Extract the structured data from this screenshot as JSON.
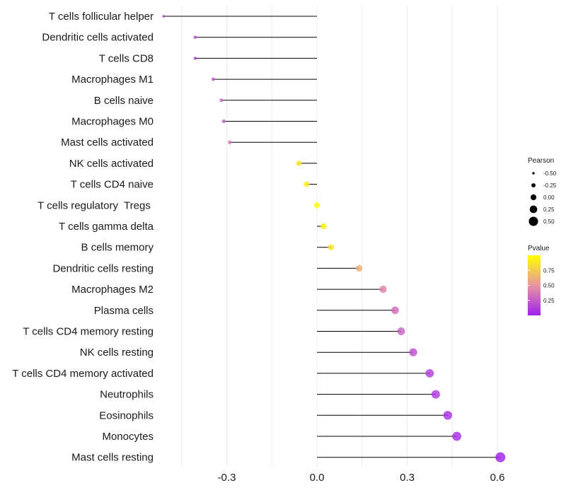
{
  "chart_data": {
    "type": "lollipop",
    "orientation": "horizontal",
    "baseline": 0,
    "xlim": [
      -0.52,
      0.64
    ],
    "xticks": [
      -0.3,
      0.0,
      0.3,
      0.6
    ],
    "xtick_labels": [
      "-0.3",
      "0.0",
      "0.3",
      "0.6"
    ],
    "xlabel": "",
    "ylabel": "",
    "grid": "vertical",
    "points": [
      {
        "label": "T cells follicular helper",
        "value": -0.51,
        "pvalue": 0.03
      },
      {
        "label": "Dendritic cells activated",
        "value": -0.405,
        "pvalue": 0.16
      },
      {
        "label": "T cells CD8",
        "value": -0.405,
        "pvalue": 0.1
      },
      {
        "label": "Macrophages M1",
        "value": -0.345,
        "pvalue": 0.25
      },
      {
        "label": "B cells naive",
        "value": -0.318,
        "pvalue": 0.3
      },
      {
        "label": "Macrophages M0",
        "value": -0.31,
        "pvalue": 0.28
      },
      {
        "label": "Mast cells activated",
        "value": -0.29,
        "pvalue": 0.37
      },
      {
        "label": "NK cells activated",
        "value": -0.06,
        "pvalue": 0.88
      },
      {
        "label": "T cells CD4 naive",
        "value": -0.035,
        "pvalue": 0.93
      },
      {
        "label": "T cells regulatory  Tregs ",
        "value": 0.0,
        "pvalue": 0.99
      },
      {
        "label": "T cells gamma delta",
        "value": 0.022,
        "pvalue": 0.94
      },
      {
        "label": "B cells memory",
        "value": 0.047,
        "pvalue": 0.88
      },
      {
        "label": "Dendritic cells resting",
        "value": 0.14,
        "pvalue": 0.62
      },
      {
        "label": "Macrophages M2",
        "value": 0.22,
        "pvalue": 0.42
      },
      {
        "label": "Plasma cells",
        "value": 0.26,
        "pvalue": 0.33
      },
      {
        "label": "T cells CD4 memory resting",
        "value": 0.28,
        "pvalue": 0.28
      },
      {
        "label": "NK cells resting",
        "value": 0.32,
        "pvalue": 0.2
      },
      {
        "label": "T cells CD4 memory activated",
        "value": 0.375,
        "pvalue": 0.13
      },
      {
        "label": "Neutrophils",
        "value": 0.395,
        "pvalue": 0.1
      },
      {
        "label": "Eosinophils",
        "value": 0.435,
        "pvalue": 0.07
      },
      {
        "label": "Monocytes",
        "value": 0.465,
        "pvalue": 0.05
      },
      {
        "label": "Mast cells resting",
        "value": 0.61,
        "pvalue": 0.01
      }
    ],
    "size_legend": {
      "title": "Pearson",
      "labels": [
        "-0.50",
        "-0.25",
        "0.00",
        "0.25",
        "0.50"
      ],
      "values": [
        -0.5,
        -0.25,
        0.0,
        0.25,
        0.5
      ]
    },
    "color_legend": {
      "title": "Pvalue",
      "labels": [
        "0.75",
        "0.50",
        "0.25"
      ],
      "values": [
        0.75,
        0.5,
        0.25
      ],
      "range": [
        0.0,
        1.0
      ]
    },
    "colors": {
      "low": "#a020f0",
      "mid": "#e896a0",
      "high": "#ffff00",
      "stem": "#000000",
      "grid": "#ebebeb",
      "size_legend_dot": "#000000"
    }
  }
}
